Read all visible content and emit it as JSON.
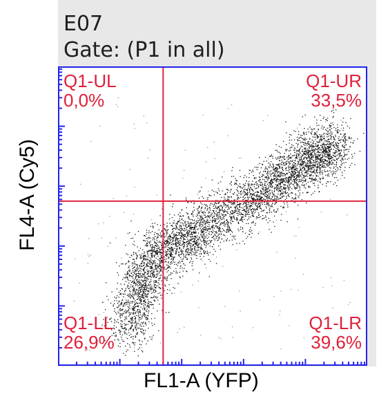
{
  "chart_data": {
    "type": "scatter",
    "title": "E07",
    "subtitle": "Gate: (P1 in all)",
    "xlabel": "FL1-A (YFP)",
    "ylabel": "FL4-A (Cy5)",
    "xscale": "log",
    "yscale": "log",
    "xlim": [
      0,
      1
    ],
    "ylim": [
      0,
      1
    ],
    "grid": false,
    "quadrant_divider": {
      "x": 0.34,
      "y": 0.55
    },
    "quadrants": [
      {
        "name": "Q1-UL",
        "value": "0,0%"
      },
      {
        "name": "Q1-UR",
        "value": "33,5%"
      },
      {
        "name": "Q1-LL",
        "value": "26,9%"
      },
      {
        "name": "Q1-LR",
        "value": "39,6%"
      }
    ],
    "population_trend": [
      {
        "x": 0.22,
        "y": 0.12
      },
      {
        "x": 0.3,
        "y": 0.36
      },
      {
        "x": 0.45,
        "y": 0.45
      },
      {
        "x": 0.65,
        "y": 0.57
      },
      {
        "x": 0.8,
        "y": 0.68
      },
      {
        "x": 0.9,
        "y": 0.74
      }
    ],
    "colors": {
      "points": "#111111",
      "gate_lines": "#e0203a",
      "quadrant_text": "#e0203a",
      "frame": "#2222ee",
      "panel": "#e8e8e8"
    }
  }
}
